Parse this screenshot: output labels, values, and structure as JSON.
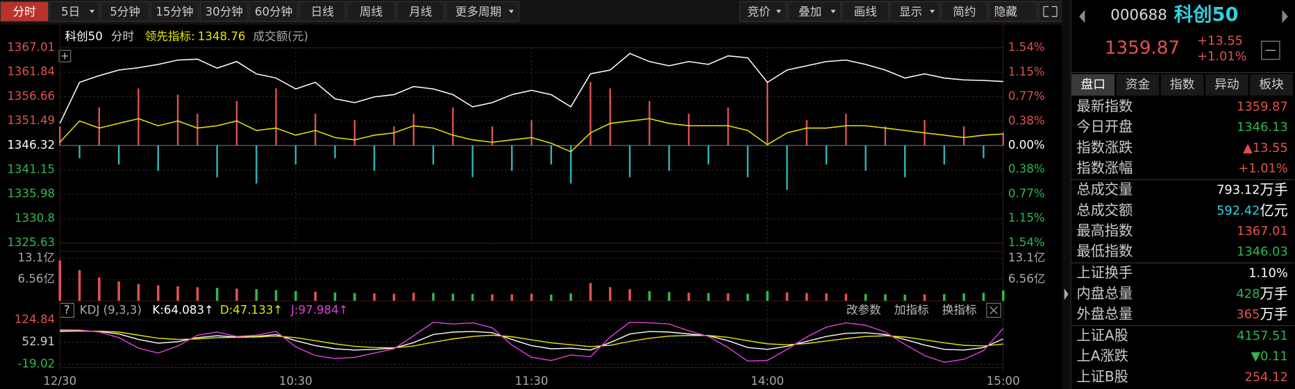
{
  "toolbar": {
    "left": [
      {
        "label": "分时",
        "active": true
      },
      {
        "label": "5日",
        "menu": true
      },
      {
        "label": "5分钟"
      },
      {
        "label": "15分钟"
      },
      {
        "label": "30分钟"
      },
      {
        "label": "60分钟"
      },
      {
        "label": "日线"
      },
      {
        "label": "周线"
      },
      {
        "label": "月线"
      },
      {
        "label": "更多周期",
        "menu": true
      }
    ],
    "right": [
      {
        "label": "竞价",
        "menu": true
      },
      {
        "label": "叠加",
        "menu": true
      },
      {
        "label": "画线"
      },
      {
        "label": "显示",
        "menu": true
      },
      {
        "label": "简约"
      },
      {
        "label": "隐藏"
      }
    ]
  },
  "legend_bar": {
    "mode": "分时",
    "indicator_value": "1348.76",
    "volume_label": "成交额(元)"
  },
  "chart_data": [
    {
      "type": "line",
      "x": [
        0,
        5,
        10,
        15,
        20,
        25,
        30,
        35,
        40,
        45,
        50,
        55,
        60,
        65,
        70,
        75,
        80,
        85,
        90,
        95,
        100,
        105,
        110,
        115,
        120,
        125,
        130,
        135,
        140,
        145,
        150,
        155,
        160,
        165,
        170,
        175,
        180,
        185,
        190,
        195,
        200,
        205,
        210,
        215,
        220,
        225,
        230,
        235,
        240
      ],
      "xlim": [
        0,
        240
      ],
      "series": [
        {
          "name": "科创50",
          "color": "#ffffff",
          "values": [
            1351.0,
            1359.7,
            1361.1,
            1362.3,
            1362.8,
            1363.5,
            1364.4,
            1364.6,
            1362.7,
            1364.1,
            1361.5,
            1360.6,
            1358.3,
            1359.7,
            1356.2,
            1355.4,
            1356.6,
            1357.1,
            1358.8,
            1358.3,
            1357.1,
            1354.5,
            1355.4,
            1357.1,
            1358.0,
            1357.1,
            1354.5,
            1361.5,
            1362.3,
            1365.8,
            1364.1,
            1363.2,
            1364.1,
            1363.5,
            1365.3,
            1364.9,
            1359.7,
            1362.3,
            1363.2,
            1364.1,
            1364.4,
            1363.5,
            1362.3,
            1360.6,
            1361.5,
            1360.6,
            1360.2,
            1360.1,
            1359.87
          ]
        },
        {
          "name": "领先指标:",
          "color": "#e6e600",
          "values": [
            1347.0,
            1351.5,
            1350.0,
            1351.0,
            1352.0,
            1350.5,
            1351.5,
            1350.0,
            1350.5,
            1351.5,
            1349.5,
            1350.0,
            1348.5,
            1349.5,
            1348.0,
            1347.5,
            1348.5,
            1349.0,
            1350.5,
            1350.0,
            1348.5,
            1347.5,
            1347.0,
            1347.5,
            1348.0,
            1346.8,
            1345.0,
            1349.0,
            1351.0,
            1351.5,
            1352.0,
            1351.0,
            1350.5,
            1350.5,
            1350.5,
            1349.5,
            1346.5,
            1349.0,
            1350.0,
            1350.0,
            1350.5,
            1350.5,
            1350.0,
            1349.5,
            1349.0,
            1348.5,
            1348.0,
            1348.5,
            1348.76
          ]
        }
      ],
      "bars": {
        "axis": "y2",
        "up_color": "#e0524f",
        "down_color": "#2fb7c0",
        "values": [
          0.3,
          -0.2,
          0.6,
          -0.3,
          0.9,
          -0.4,
          0.8,
          0.5,
          -0.5,
          0.7,
          -0.6,
          0.9,
          -0.3,
          0.5,
          -0.2,
          0.4,
          -0.4,
          0.3,
          0.5,
          -0.3,
          0.6,
          -0.5,
          0.3,
          -0.4,
          0.4,
          -0.3,
          -0.6,
          1.0,
          0.9,
          -0.5,
          0.7,
          -0.4,
          0.5,
          -0.3,
          0.6,
          -0.5,
          1.0,
          -0.7,
          0.4,
          -0.3,
          0.5,
          -0.4,
          0.3,
          -0.5,
          0.4,
          -0.3,
          0.3,
          -0.2,
          0.2
        ]
      },
      "ylim": [
        1325.63,
        1367.01
      ],
      "yticks": [
        1325.63,
        1330.8,
        1335.98,
        1341.15,
        1346.32,
        1351.49,
        1356.66,
        1361.84,
        1367.01
      ],
      "y2lim": [
        -1.54,
        1.54
      ],
      "y2ticks": [
        {
          "value": -1.54,
          "label": "1.54%"
        },
        {
          "value": -1.15,
          "label": "1.15%"
        },
        {
          "value": -0.77,
          "label": "0.77%"
        },
        {
          "value": -0.38,
          "label": "0.38%"
        },
        {
          "value": 0,
          "label": "0.00%"
        },
        {
          "value": 0.38,
          "label": "0.38%"
        },
        {
          "value": 0.77,
          "label": "0.77%"
        },
        {
          "value": 1.15,
          "label": "1.15%"
        },
        {
          "value": 1.54,
          "label": "1.54%"
        }
      ],
      "up_color": "#e0524f",
      "down_color": "#2fb74f",
      "grid": true
    },
    {
      "type": "bar",
      "x": [
        0,
        5,
        10,
        15,
        20,
        25,
        30,
        35,
        40,
        45,
        50,
        55,
        60,
        65,
        70,
        75,
        80,
        85,
        90,
        95,
        100,
        105,
        110,
        115,
        120,
        125,
        130,
        135,
        140,
        145,
        150,
        155,
        160,
        165,
        170,
        175,
        180,
        185,
        190,
        195,
        200,
        205,
        210,
        215,
        220,
        225,
        230,
        235,
        240
      ],
      "xlim": [
        0,
        240
      ],
      "values": [
        12.5,
        9.5,
        7.2,
        6.0,
        5.2,
        4.8,
        4.5,
        4.2,
        4.0,
        3.8,
        3.6,
        3.3,
        3.0,
        2.8,
        2.6,
        2.4,
        2.3,
        2.2,
        2.5,
        2.4,
        2.2,
        2.1,
        2.0,
        2.0,
        2.2,
        1.9,
        2.3,
        5.5,
        4.2,
        3.6,
        3.0,
        2.7,
        2.5,
        2.4,
        2.3,
        2.2,
        3.0,
        2.6,
        2.4,
        2.3,
        2.2,
        2.1,
        2.0,
        1.9,
        2.0,
        2.1,
        2.3,
        2.5,
        3.2
      ],
      "up_color": "#e0524f",
      "down_color": "#2fb74f",
      "ylim": [
        0,
        13.5
      ],
      "yticks": [
        {
          "value": 6.56,
          "label": "6.56亿"
        },
        {
          "value": 13.1,
          "label": "13.1亿"
        }
      ],
      "grid": true
    },
    {
      "type": "line",
      "x": [
        0,
        5,
        10,
        15,
        20,
        25,
        30,
        35,
        40,
        45,
        50,
        55,
        60,
        65,
        70,
        75,
        80,
        85,
        90,
        95,
        100,
        105,
        110,
        115,
        120,
        125,
        130,
        135,
        140,
        145,
        150,
        155,
        160,
        165,
        170,
        175,
        180,
        185,
        190,
        195,
        200,
        205,
        210,
        215,
        220,
        225,
        230,
        235,
        240
      ],
      "xlim": [
        0,
        240
      ],
      "xticks": [
        {
          "value": 0,
          "label": "12/30"
        },
        {
          "value": 60,
          "label": "10:30"
        },
        {
          "value": 120,
          "label": "11:30"
        },
        {
          "value": 180,
          "label": "14:00"
        },
        {
          "value": 240,
          "label": "15:00"
        }
      ],
      "series": [
        {
          "color": "#ffffff",
          "values": [
            90,
            90,
            88,
            80,
            62,
            50,
            55,
            68,
            74,
            70,
            72,
            78,
            58,
            42,
            32,
            28,
            30,
            34,
            52,
            78,
            86,
            88,
            84,
            62,
            42,
            32,
            34,
            28,
            52,
            80,
            88,
            86,
            80,
            74,
            58,
            36,
            30,
            40,
            56,
            72,
            82,
            84,
            78,
            62,
            44,
            30,
            28,
            36,
            64.083
          ]
        },
        {
          "color": "#e6e600",
          "values": [
            88,
            89,
            89,
            86,
            76,
            66,
            62,
            64,
            68,
            69,
            70,
            73,
            68,
            58,
            48,
            40,
            36,
            35,
            41,
            53,
            64,
            72,
            76,
            71,
            61,
            51,
            45,
            39,
            43,
            56,
            66,
            73,
            75,
            75,
            69,
            58,
            48,
            45,
            49,
            57,
            65,
            72,
            74,
            70,
            61,
            51,
            43,
            41,
            47.133
          ]
        },
        {
          "color": "#e040e0",
          "values": [
            94,
            93,
            86,
            68,
            34,
            18,
            41,
            76,
            86,
            72,
            76,
            88,
            38,
            10,
            0,
            4,
            18,
            32,
            74,
            118,
            112,
            116,
            100,
            44,
            4,
            -6,
            12,
            6,
            70,
            118,
            116,
            112,
            90,
            72,
            36,
            -8,
            -6,
            30,
            70,
            102,
            116,
            108,
            86,
            46,
            10,
            -12,
            -2,
            26,
            97.984
          ]
        }
      ],
      "ylim": [
        -29,
        174
      ],
      "yticks": [
        -19.02,
        52.91,
        124.84
      ],
      "ytick_colors": [
        "#2fb74f",
        "#cccccc",
        "#e0524f"
      ],
      "grid": true
    }
  ],
  "kdj_bar": {
    "params": "KDJ (9,3,3)",
    "k": "K:64.083↑",
    "d": "D:47.133↑",
    "j": "J:97.984↑",
    "buttons": [
      "改参数",
      "加指标",
      "换指标"
    ]
  },
  "quote": {
    "code": "000688",
    "name": "科创50",
    "price": "1359.87",
    "change": "+13.55",
    "change_pct": "+1.01%"
  },
  "tabs": [
    "盘口",
    "资金",
    "指数",
    "异动",
    "板块"
  ],
  "rows": [
    {
      "label": "最新指数",
      "value": "1359.87",
      "color": "#e0524f"
    },
    {
      "label": "今日开盘",
      "value": "1346.13",
      "color": "#2fb74f"
    },
    {
      "label": "指数涨跌",
      "value": "▲13.55",
      "color": "#e0524f"
    },
    {
      "label": "指数涨幅",
      "value": "+1.01%",
      "color": "#e0524f"
    },
    {
      "label": "总成交量",
      "value": "793.12",
      "unit": "万手",
      "color": "#ffffff"
    },
    {
      "label": "总成交额",
      "value": "592.42",
      "unit": "亿元",
      "color": "#2fd0e0"
    },
    {
      "label": "最高指数",
      "value": "1367.01",
      "color": "#e0524f"
    },
    {
      "label": "最低指数",
      "value": "1346.03",
      "color": "#2fb74f"
    },
    {
      "label": "上证换手",
      "value": "1.10%",
      "color": "#ffffff"
    },
    {
      "label": "内盘总量",
      "value": "428",
      "unit": "万手",
      "color": "#2fb74f"
    },
    {
      "label": "外盘总量",
      "value": "365",
      "unit": "万手",
      "color": "#e0524f"
    },
    {
      "label": "上证A股",
      "value": "4157.51",
      "color": "#2fb74f"
    },
    {
      "label": "上A涨跌",
      "value": "▼0.11",
      "color": "#2fb74f"
    },
    {
      "label": "上证B股",
      "value": "254.12",
      "color": "#e0524f"
    }
  ]
}
